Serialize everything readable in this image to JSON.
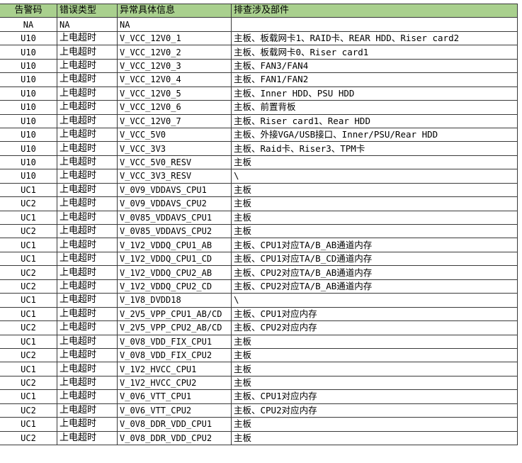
{
  "headers": [
    "告警码",
    "错误类型",
    "异常具体信息",
    "排查涉及部件"
  ],
  "header_color": "#a9d08e",
  "rows": [
    [
      "NA",
      "NA",
      "NA",
      ""
    ],
    [
      "U10",
      "上电超时",
      "V_VCC_12V0_1",
      "主板、板载网卡1、RAID卡、REAR HDD、Riser card2"
    ],
    [
      "U10",
      "上电超时",
      "V_VCC_12V0_2",
      "主板、板载网卡0、Riser card1"
    ],
    [
      "U10",
      "上电超时",
      "V_VCC_12V0_3",
      "主板、FAN3/FAN4"
    ],
    [
      "U10",
      "上电超时",
      "V_VCC_12V0_4",
      "主板、FAN1/FAN2"
    ],
    [
      "U10",
      "上电超时",
      "V_VCC_12V0_5",
      "主板、Inner HDD、PSU HDD"
    ],
    [
      "U10",
      "上电超时",
      "V_VCC_12V0_6",
      "主板、前置背板"
    ],
    [
      "U10",
      "上电超时",
      "V_VCC_12V0_7",
      "主板、Riser card1、Rear HDD"
    ],
    [
      "U10",
      "上电超时",
      "V_VCC_5V0",
      "主板、外接VGA/USB接口、Inner/PSU/Rear HDD"
    ],
    [
      "U10",
      "上电超时",
      "V_VCC_3V3",
      "主板、Raid卡、Riser3、TPM卡"
    ],
    [
      "U10",
      "上电超时",
      "V_VCC_5V0_RESV",
      "主板"
    ],
    [
      "U10",
      "上电超时",
      "V_VCC_3V3_RESV",
      "\\"
    ],
    [
      "UC1",
      "上电超时",
      "V_0V9_VDDAVS_CPU1",
      "主板"
    ],
    [
      "UC2",
      "上电超时",
      "V_0V9_VDDAVS_CPU2",
      "主板"
    ],
    [
      "UC1",
      "上电超时",
      "V_0V85_VDDAVS_CPU1",
      "主板"
    ],
    [
      "UC2",
      "上电超时",
      "V_0V85_VDDAVS_CPU2",
      "主板"
    ],
    [
      "UC1",
      "上电超时",
      "V_1V2_VDDQ_CPU1_AB",
      "主板、CPU1对应TA/B_AB通道内存"
    ],
    [
      "UC1",
      "上电超时",
      "V_1V2_VDDQ_CPU1_CD",
      "主板、CPU1对应TA/B_CD通道内存"
    ],
    [
      "UC2",
      "上电超时",
      "V_1V2_VDDQ_CPU2_AB",
      "主板、CPU2对应TA/B_AB通道内存"
    ],
    [
      "UC2",
      "上电超时",
      "V_1V2_VDDQ_CPU2_CD",
      "主板、CPU2对应TA/B_AB通道内存"
    ],
    [
      "UC1",
      "上电超时",
      "V_1V8_DVDD18",
      "\\"
    ],
    [
      "UC1",
      "上电超时",
      "V_2V5_VPP_CPU1_AB/CD",
      "主板、CPU1对应内存"
    ],
    [
      "UC2",
      "上电超时",
      "V_2V5_VPP_CPU2_AB/CD",
      "主板、CPU2对应内存"
    ],
    [
      "UC1",
      "上电超时",
      "V_0V8_VDD_FIX_CPU1",
      "主板"
    ],
    [
      "UC2",
      "上电超时",
      "V_0V8_VDD_FIX_CPU2",
      "主板"
    ],
    [
      "UC1",
      "上电超时",
      "V_1V2_HVCC_CPU1",
      "主板"
    ],
    [
      "UC2",
      "上电超时",
      "V_1V2_HVCC_CPU2",
      "主板"
    ],
    [
      "UC1",
      "上电超时",
      "V_0V6_VTT_CPU1",
      "主板、CPU1对应内存"
    ],
    [
      "UC2",
      "上电超时",
      "V_0V6_VTT_CPU2",
      "主板、CPU2对应内存"
    ],
    [
      "UC1",
      "上电超时",
      "V_0V8_DDR_VDD_CPU1",
      "主板"
    ],
    [
      "UC2",
      "上电超时",
      "V_0V8_DDR_VDD_CPU2",
      "主板"
    ]
  ]
}
